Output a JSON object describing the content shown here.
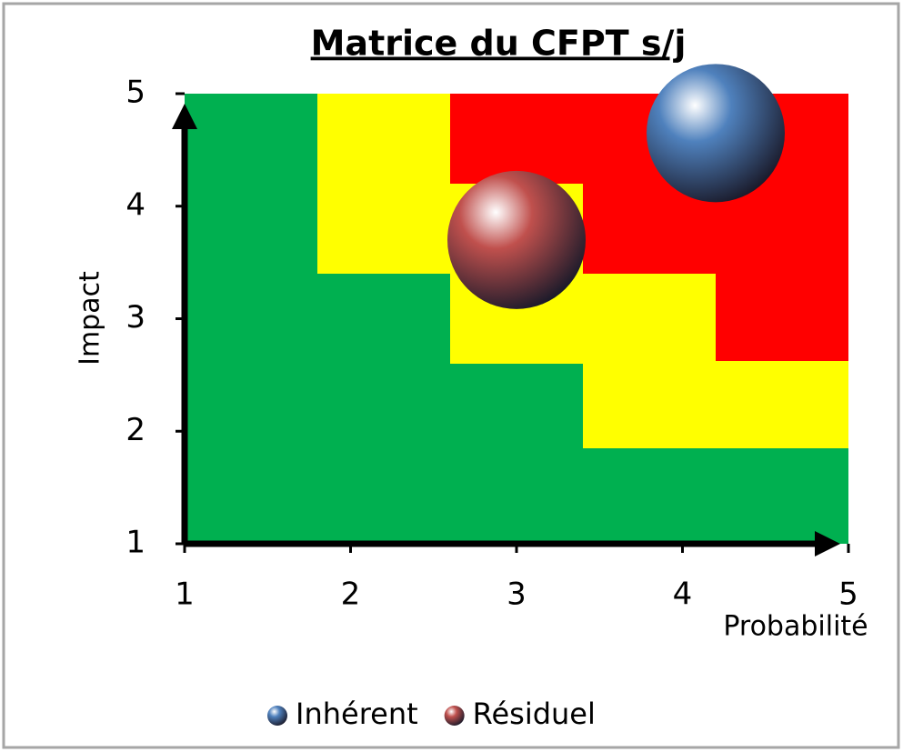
{
  "chart_data": {
    "type": "bubble",
    "title": "Matrice du  CFPT s/j",
    "xlabel": "Probabilité",
    "ylabel": "Impact",
    "xlim": [
      1,
      5
    ],
    "ylim": [
      1,
      5
    ],
    "xticks": [
      1,
      2,
      3,
      4,
      5
    ],
    "yticks": [
      1,
      2,
      3,
      4,
      5
    ],
    "series": [
      {
        "name": "Inhérent",
        "color": "#4f81bd",
        "x": [
          4.2
        ],
        "values": [
          4.65
        ],
        "sizes": [
          1
        ]
      },
      {
        "name": "Résiduel",
        "color": "#c0504d",
        "x": [
          3.0
        ],
        "values": [
          3.7
        ],
        "sizes": [
          1
        ]
      }
    ]
  }
}
